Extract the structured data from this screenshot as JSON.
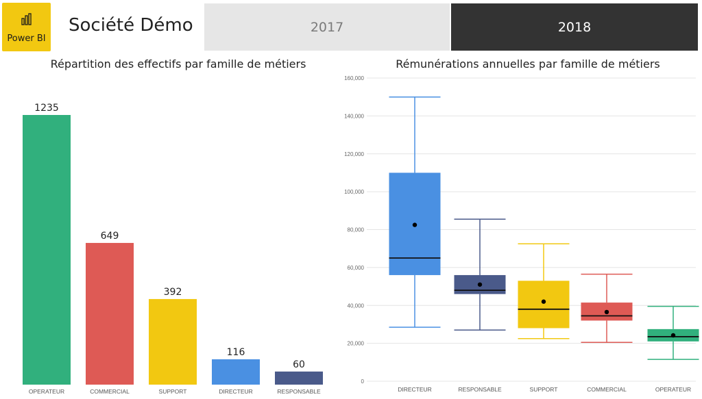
{
  "header": {
    "logo_text": "Power BI",
    "company": "Société Démo",
    "years": [
      {
        "label": "2017",
        "selected": false
      },
      {
        "label": "2018",
        "selected": true
      }
    ]
  },
  "colors": {
    "OPERATEUR": "#31b07d",
    "COMMERCIAL": "#de5a55",
    "SUPPORT": "#f2c811",
    "DIRECTEUR": "#4a90e2",
    "RESPONSABLE": "#4a5a8a",
    "logo": "#f2c811",
    "tab_selected": "#333333",
    "tab_unselected": "#e6e6e6"
  },
  "chart_data": [
    {
      "type": "bar",
      "title": "Répartition des effectifs par famille de métiers",
      "categories": [
        "OPERATEUR",
        "COMMERCIAL",
        "SUPPORT",
        "DIRECTEUR",
        "RESPONSABLE"
      ],
      "values": [
        1235,
        649,
        392,
        116,
        60
      ],
      "data_labels": [
        "1235",
        "649",
        "392",
        "116",
        "60"
      ],
      "ylim": [
        0,
        1235
      ],
      "grid": false
    },
    {
      "type": "boxplot",
      "title": "Rémunérations annuelles par famille de métiers",
      "categories": [
        "DIRECTEUR",
        "RESPONSABLE",
        "SUPPORT",
        "COMMERCIAL",
        "OPERATEUR"
      ],
      "boxes": [
        {
          "min": 28500,
          "q1": 56000,
          "median": 65000,
          "q3": 110000,
          "max": 150000,
          "mean": 82500
        },
        {
          "min": 27000,
          "q1": 46000,
          "median": 48000,
          "q3": 56000,
          "max": 85500,
          "mean": 51000
        },
        {
          "min": 22500,
          "q1": 28000,
          "median": 38000,
          "q3": 53000,
          "max": 72500,
          "mean": 42000
        },
        {
          "min": 20500,
          "q1": 32000,
          "median": 34500,
          "q3": 41500,
          "max": 56500,
          "mean": 36500
        },
        {
          "min": 11500,
          "q1": 21000,
          "median": 23500,
          "q3": 27500,
          "max": 39500,
          "mean": 24200
        }
      ],
      "yticks": [
        "0",
        "20,000",
        "40,000",
        "60,000",
        "80,000",
        "100,000",
        "120,000",
        "140,000",
        "160,000"
      ],
      "ylim": [
        0,
        160000
      ],
      "grid": true
    }
  ]
}
